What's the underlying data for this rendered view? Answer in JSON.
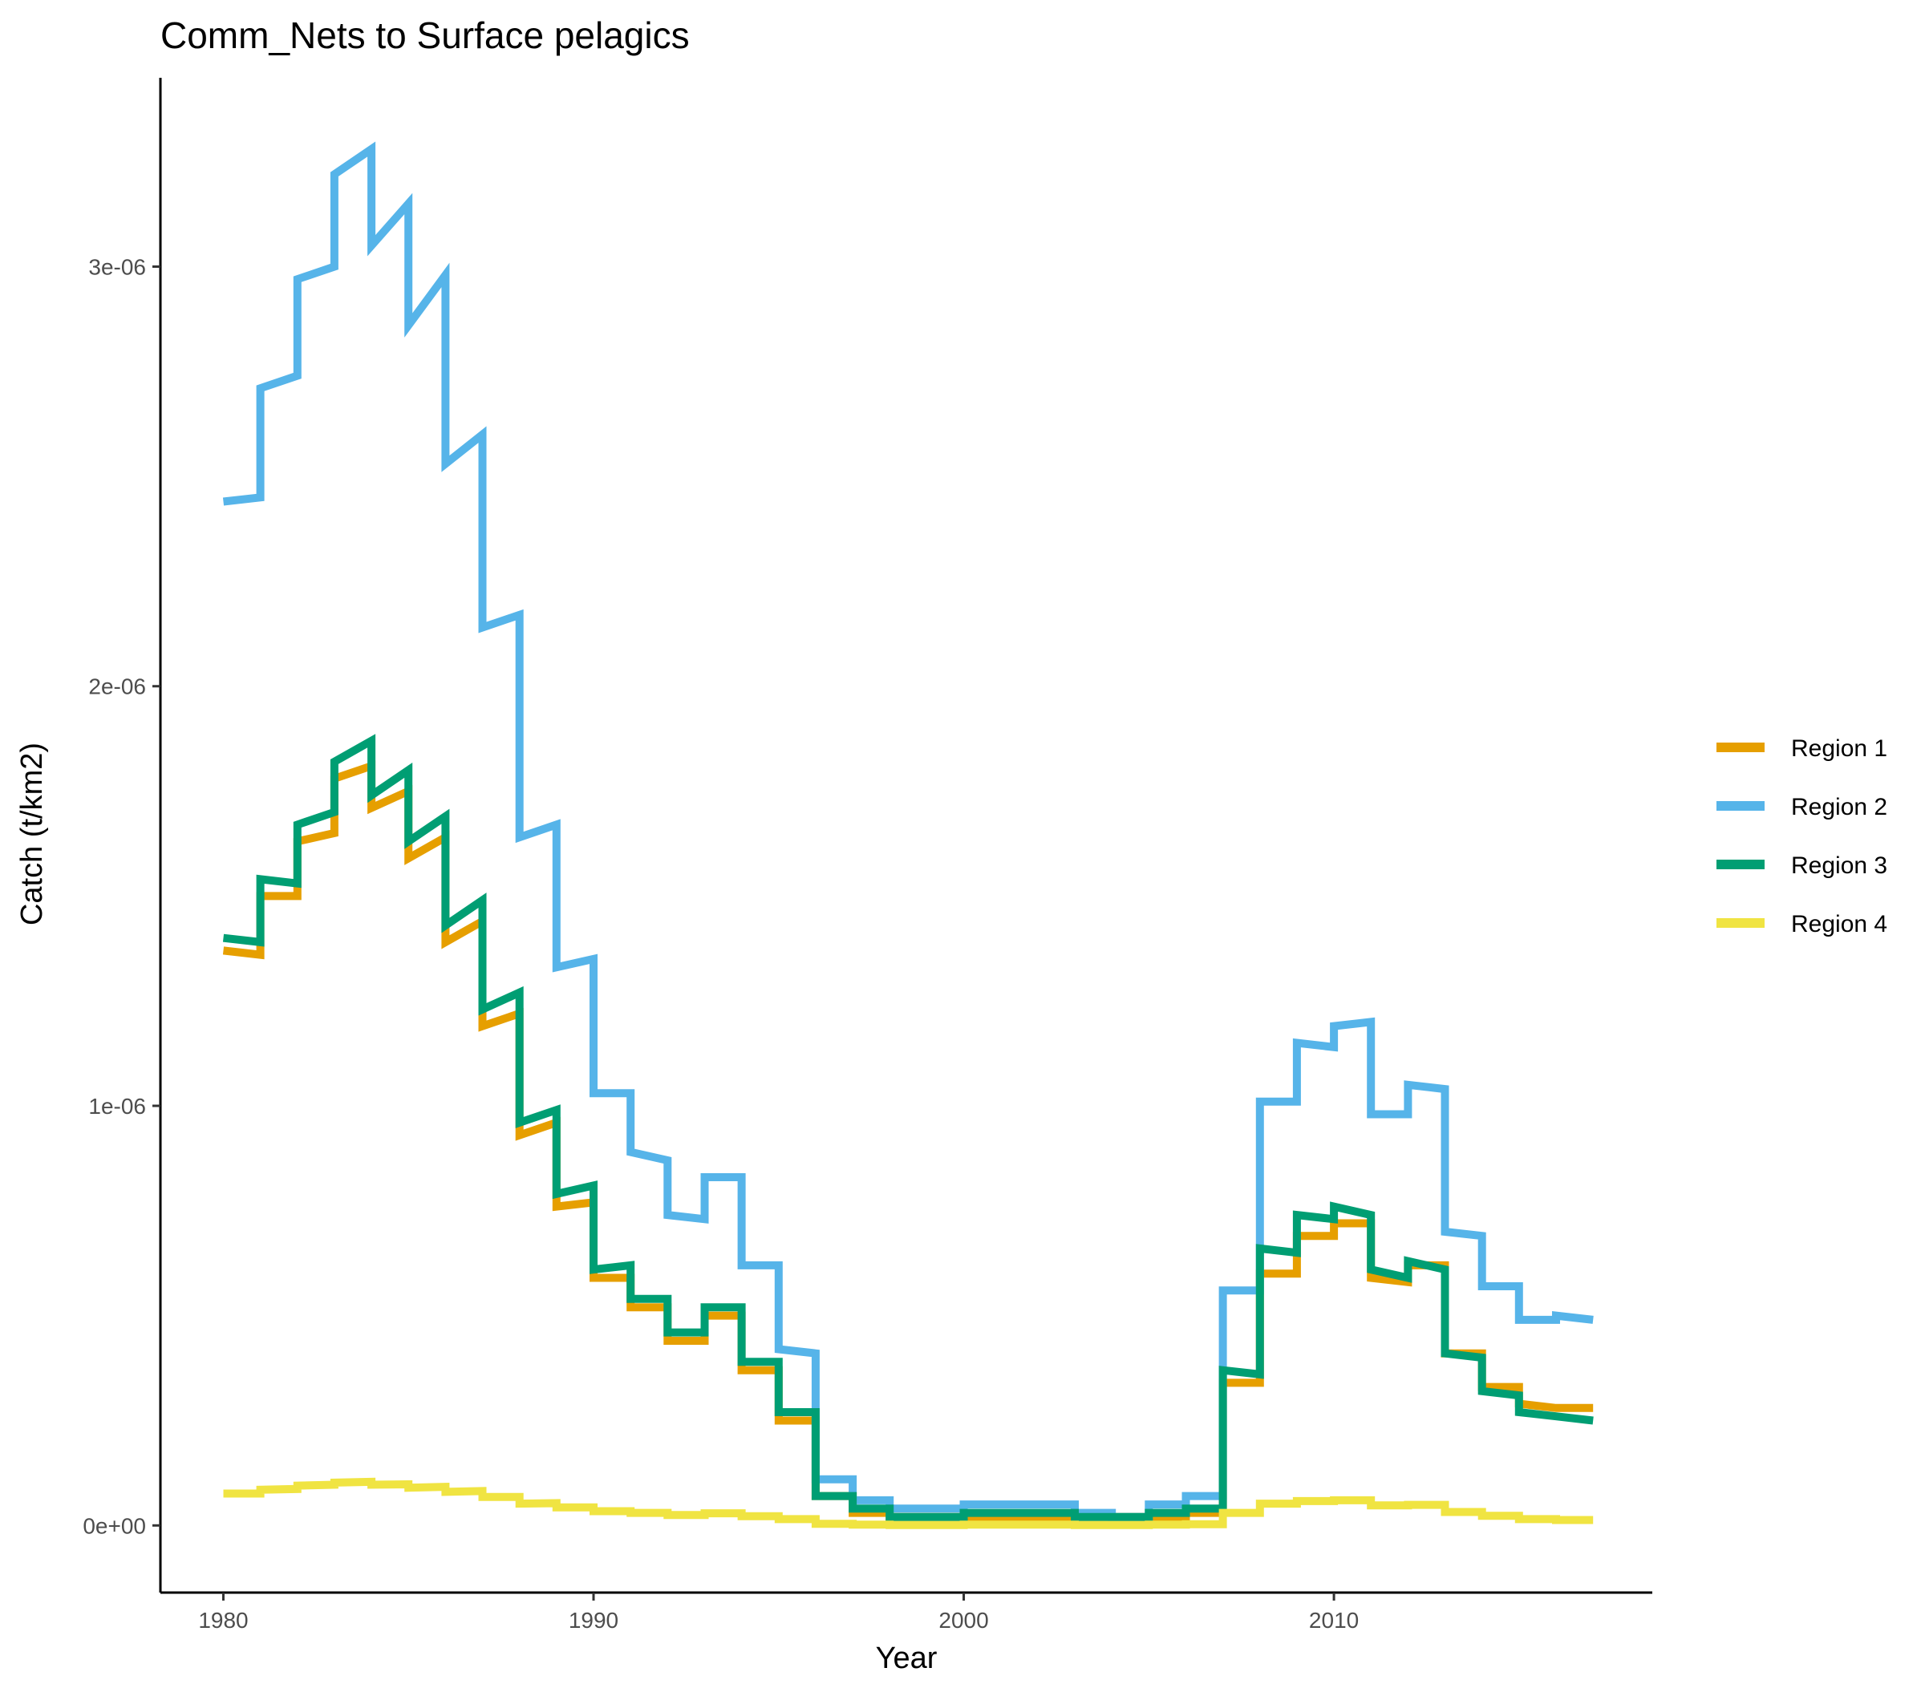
{
  "chart_data": {
    "type": "line",
    "step": true,
    "title": "Comm_Nets to Surface pelagics",
    "xlabel": "Year",
    "ylabel": "Catch (t/km2)",
    "xlim": [
      1978.3,
      2018.6
    ],
    "ylim": [
      -1.6e-07,
      3.45e-06
    ],
    "x_ticks": [
      1980,
      1990,
      2000,
      2010
    ],
    "x_tick_labels": [
      "1980",
      "1990",
      "2000",
      "2010"
    ],
    "y_ticks": [
      0,
      1e-06,
      2e-06,
      3e-06
    ],
    "y_tick_labels": [
      "0e+00",
      "1e-06",
      "2e-06",
      "3e-06"
    ],
    "grid": false,
    "legend_position": "right",
    "years": [
      1980,
      1981,
      1982,
      1983,
      1984,
      1985,
      1986,
      1987,
      1988,
      1989,
      1990,
      1991,
      1992,
      1993,
      1994,
      1995,
      1996,
      1997,
      1998,
      1999,
      2000,
      2001,
      2002,
      2003,
      2004,
      2005,
      2006,
      2007,
      2008,
      2009,
      2010,
      2011,
      2012,
      2013,
      2014,
      2015,
      2016,
      2017
    ],
    "x_end": 2017,
    "series": [
      {
        "name": "Region 1",
        "color": "#E69F00",
        "segments": [
          [
            1.37e-06,
            1.36e-06
          ],
          [
            1.5e-06,
            1.5e-06
          ],
          [
            1.63e-06,
            1.65e-06
          ],
          [
            1.78e-06,
            1.81e-06
          ],
          [
            1.71e-06,
            1.75e-06
          ],
          [
            1.59e-06,
            1.64e-06
          ],
          [
            1.39e-06,
            1.44e-06
          ],
          [
            1.19e-06,
            1.22e-06
          ],
          [
            9.3e-07,
            9.6e-07
          ],
          [
            7.6e-07,
            7.7e-07
          ],
          [
            5.9e-07,
            5.9e-07
          ],
          [
            5.2e-07,
            5.2e-07
          ],
          [
            4.4e-07,
            4.4e-07
          ],
          [
            5e-07,
            5e-07
          ],
          [
            3.7e-07,
            3.7e-07
          ],
          [
            2.5e-07,
            2.5e-07
          ],
          [
            7e-08,
            7e-08
          ],
          [
            3e-08,
            3e-08
          ],
          [
            2e-08,
            2e-08
          ],
          [
            2e-08,
            2e-08
          ],
          [
            2e-08,
            2e-08
          ],
          [
            2e-08,
            2e-08
          ],
          [
            2e-08,
            2e-08
          ],
          [
            2e-08,
            2e-08
          ],
          [
            2e-08,
            2e-08
          ],
          [
            2e-08,
            2e-08
          ],
          [
            3e-08,
            3e-08
          ],
          [
            3.4e-07,
            3.4e-07
          ],
          [
            6e-07,
            6e-07
          ],
          [
            6.9e-07,
            6.9e-07
          ],
          [
            7.2e-07,
            7.2e-07
          ],
          [
            5.9e-07,
            5.8e-07
          ],
          [
            6.2e-07,
            6.2e-07
          ],
          [
            4.1e-07,
            4.1e-07
          ],
          [
            3.3e-07,
            3.3e-07
          ],
          [
            2.9e-07,
            2.8e-07
          ],
          [
            2.8e-07,
            2.8e-07
          ]
        ]
      },
      {
        "name": "Region 2",
        "color": "#56B4E9",
        "segments": [
          [
            2.44e-06,
            2.45e-06
          ],
          [
            2.71e-06,
            2.74e-06
          ],
          [
            2.97e-06,
            3e-06
          ],
          [
            3.22e-06,
            3.28e-06
          ],
          [
            3.05e-06,
            3.15e-06
          ],
          [
            2.86e-06,
            2.98e-06
          ],
          [
            2.53e-06,
            2.6e-06
          ],
          [
            2.14e-06,
            2.17e-06
          ],
          [
            1.64e-06,
            1.67e-06
          ],
          [
            1.33e-06,
            1.35e-06
          ],
          [
            1.03e-06,
            1.03e-06
          ],
          [
            8.9e-07,
            8.7e-07
          ],
          [
            7.4e-07,
            7.3e-07
          ],
          [
            8.3e-07,
            8.3e-07
          ],
          [
            6.2e-07,
            6.2e-07
          ],
          [
            4.2e-07,
            4.1e-07
          ],
          [
            1.1e-07,
            1.1e-07
          ],
          [
            6e-08,
            6e-08
          ],
          [
            4e-08,
            4e-08
          ],
          [
            4e-08,
            4e-08
          ],
          [
            5e-08,
            5e-08
          ],
          [
            5e-08,
            5e-08
          ],
          [
            5e-08,
            5e-08
          ],
          [
            3e-08,
            3e-08
          ],
          [
            2e-08,
            2e-08
          ],
          [
            5e-08,
            5e-08
          ],
          [
            7e-08,
            7e-08
          ],
          [
            5.6e-07,
            5.6e-07
          ],
          [
            1.01e-06,
            1.01e-06
          ],
          [
            1.15e-06,
            1.14e-06
          ],
          [
            1.19e-06,
            1.2e-06
          ],
          [
            9.8e-07,
            9.8e-07
          ],
          [
            1.05e-06,
            1.04e-06
          ],
          [
            7e-07,
            6.9e-07
          ],
          [
            5.7e-07,
            5.7e-07
          ],
          [
            4.9e-07,
            4.9e-07
          ],
          [
            5e-07,
            4.9e-07
          ]
        ]
      },
      {
        "name": "Region 3",
        "color": "#009E73",
        "segments": [
          [
            1.4e-06,
            1.39e-06
          ],
          [
            1.54e-06,
            1.53e-06
          ],
          [
            1.67e-06,
            1.7e-06
          ],
          [
            1.82e-06,
            1.87e-06
          ],
          [
            1.74e-06,
            1.8e-06
          ],
          [
            1.63e-06,
            1.69e-06
          ],
          [
            1.43e-06,
            1.49e-06
          ],
          [
            1.23e-06,
            1.27e-06
          ],
          [
            9.6e-07,
            9.9e-07
          ],
          [
            7.9e-07,
            8.1e-07
          ],
          [
            6.1e-07,
            6.2e-07
          ],
          [
            5.4e-07,
            5.4e-07
          ],
          [
            4.6e-07,
            4.6e-07
          ],
          [
            5.2e-07,
            5.2e-07
          ],
          [
            3.9e-07,
            3.9e-07
          ],
          [
            2.7e-07,
            2.7e-07
          ],
          [
            7e-08,
            7e-08
          ],
          [
            4e-08,
            4e-08
          ],
          [
            2e-08,
            2e-08
          ],
          [
            2e-08,
            2e-08
          ],
          [
            3e-08,
            3e-08
          ],
          [
            3e-08,
            3e-08
          ],
          [
            3e-08,
            3e-08
          ],
          [
            2e-08,
            2e-08
          ],
          [
            2e-08,
            2e-08
          ],
          [
            3e-08,
            3e-08
          ],
          [
            4e-08,
            4e-08
          ],
          [
            3.7e-07,
            3.6e-07
          ],
          [
            6.6e-07,
            6.5e-07
          ],
          [
            7.4e-07,
            7.3e-07
          ],
          [
            7.6e-07,
            7.4e-07
          ],
          [
            6.1e-07,
            5.9e-07
          ],
          [
            6.3e-07,
            6.1e-07
          ],
          [
            4.1e-07,
            4e-07
          ],
          [
            3.2e-07,
            3.1e-07
          ],
          [
            2.7e-07,
            2.6e-07
          ],
          [
            2.6e-07,
            2.5e-07
          ]
        ]
      },
      {
        "name": "Region 4",
        "color": "#F0E442",
        "segments": [
          [
            7.6e-08,
            7.6e-08
          ],
          [
            8.5e-08,
            8.7e-08
          ],
          [
            9.5e-08,
            9.7e-08
          ],
          [
            1.02e-07,
            1.04e-07
          ],
          [
            9.7e-08,
            9.8e-08
          ],
          [
            9e-08,
            9.2e-08
          ],
          [
            8e-08,
            8.2e-08
          ],
          [
            6.8e-08,
            6.8e-08
          ],
          [
            5.2e-08,
            5.3e-08
          ],
          [
            4.3e-08,
            4.3e-08
          ],
          [
            3.4e-08,
            3.4e-08
          ],
          [
            3e-08,
            3e-08
          ],
          [
            2.5e-08,
            2.5e-08
          ],
          [
            2.9e-08,
            2.9e-08
          ],
          [
            2.2e-08,
            2.2e-08
          ],
          [
            1.5e-08,
            1.5e-08
          ],
          [
            4e-09,
            4e-09
          ],
          [
            2e-09,
            2e-09
          ],
          [
            1e-09,
            1e-09
          ],
          [
            1e-09,
            1e-09
          ],
          [
            2e-09,
            2e-09
          ],
          [
            2e-09,
            2e-09
          ],
          [
            2e-09,
            2e-09
          ],
          [
            1e-09,
            1e-09
          ],
          [
            1e-09,
            1e-09
          ],
          [
            2e-09,
            2e-09
          ],
          [
            3e-09,
            3e-09
          ],
          [
            3e-08,
            3e-08
          ],
          [
            5.2e-08,
            5.2e-08
          ],
          [
            5.8e-08,
            5.8e-08
          ],
          [
            6e-08,
            6e-08
          ],
          [
            4.8e-08,
            4.8e-08
          ],
          [
            4.9e-08,
            4.9e-08
          ],
          [
            3.2e-08,
            3.2e-08
          ],
          [
            2.3e-08,
            2.3e-08
          ],
          [
            1.5e-08,
            1.5e-08
          ],
          [
            1.3e-08,
            1.3e-08
          ]
        ]
      }
    ]
  }
}
